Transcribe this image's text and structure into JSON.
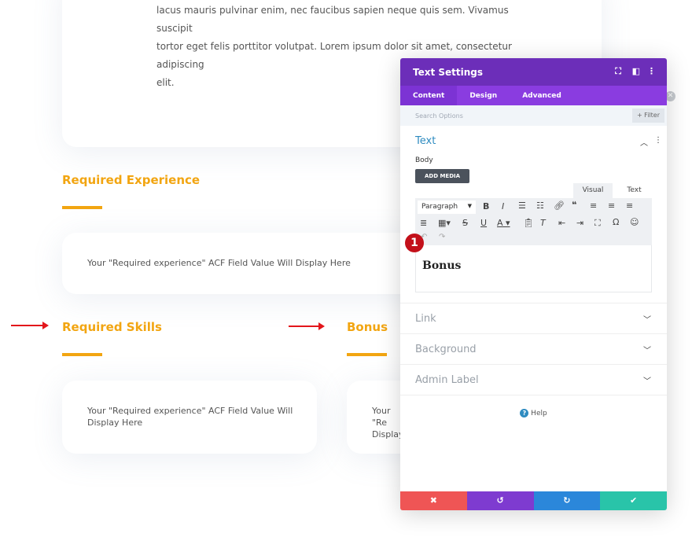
{
  "page": {
    "paragraph_lines": [
      "lacus mauris pulvinar enim, nec faucibus sapien neque quis sem. Vivamus suscipit",
      "tortor eget felis porttitor volutpat. Lorem ipsum dolor sit amet, consectetur adipiscing",
      "elit."
    ],
    "required_experience": {
      "heading": "Required Experience",
      "value": "Your \"Required experience\" ACF Field Value Will Display Here"
    },
    "required_skills": {
      "heading": "Required Skills",
      "value": "Your \"Required experience\" ACF Field Value Will Display Here"
    },
    "bonus": {
      "heading": "Bonus",
      "value": "Your \"Re Display"
    },
    "accent": "#f2a511",
    "arrow_color": "#e3161b"
  },
  "panel": {
    "title": "Text Settings",
    "tabs": [
      {
        "label": "Content",
        "active": true
      },
      {
        "label": "Design"
      },
      {
        "label": "Advanced"
      }
    ],
    "search_placeholder": "Search Options",
    "filter_label": "+ Filter",
    "text_section": {
      "title": "Text",
      "body_label": "Body",
      "add_media": "ADD MEDIA",
      "mode_tabs": [
        "Visual",
        "Text"
      ],
      "format_select": "Paragraph",
      "content": "Bonus",
      "badge": "1"
    },
    "sections": [
      "Link",
      "Background",
      "Admin Label"
    ],
    "help": "Help",
    "colors": {
      "header": "#6c2eb9",
      "tabs": "#8a3ce0",
      "cancel": "#ef5555",
      "undo": "#7e3bd0",
      "redo": "#2b87da",
      "save": "#29c4a9"
    }
  }
}
